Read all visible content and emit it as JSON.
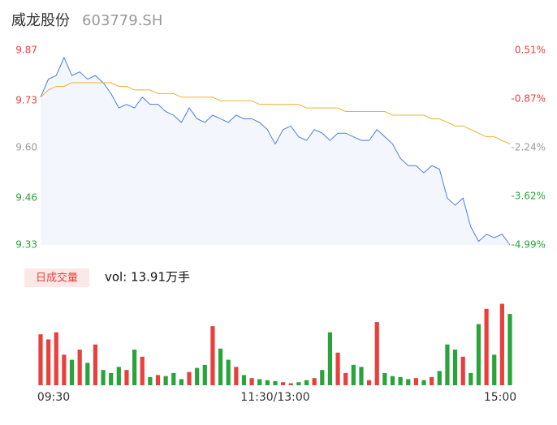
{
  "chart_data": [
    {
      "type": "line",
      "title": "威龙股份",
      "subtitle": "603779.SH",
      "x": [
        0,
        4,
        8,
        12,
        16,
        20,
        24,
        28,
        32,
        36,
        40,
        44,
        48,
        52,
        56,
        60,
        64,
        68,
        72,
        76,
        80,
        84,
        88,
        92,
        96,
        100,
        104,
        108,
        112,
        116,
        120,
        124,
        128,
        132,
        136,
        140,
        144,
        148,
        152,
        156,
        160,
        164,
        168,
        172,
        176,
        180,
        184,
        188,
        192,
        196,
        200,
        204,
        208,
        212,
        216,
        220,
        224,
        228,
        232,
        236,
        240
      ],
      "series": [
        {
          "color": "#4a7fe0",
          "values": [
            9.74,
            9.79,
            9.8,
            9.85,
            9.8,
            9.81,
            9.79,
            9.8,
            9.78,
            9.75,
            9.71,
            9.72,
            9.71,
            9.74,
            9.72,
            9.72,
            9.7,
            9.69,
            9.67,
            9.71,
            9.68,
            9.67,
            9.69,
            9.68,
            9.67,
            9.69,
            9.68,
            9.68,
            9.67,
            9.65,
            9.61,
            9.65,
            9.66,
            9.63,
            9.62,
            9.65,
            9.64,
            9.62,
            9.64,
            9.64,
            9.63,
            9.62,
            9.62,
            9.65,
            9.63,
            9.61,
            9.57,
            9.55,
            9.55,
            9.53,
            9.55,
            9.54,
            9.46,
            9.44,
            9.46,
            9.38,
            9.34,
            9.36,
            9.35,
            9.36,
            9.33
          ]
        },
        {
          "color": "#f0b030",
          "values": [
            9.74,
            9.76,
            9.77,
            9.77,
            9.78,
            9.78,
            9.78,
            9.78,
            9.78,
            9.78,
            9.77,
            9.77,
            9.76,
            9.76,
            9.76,
            9.75,
            9.75,
            9.75,
            9.74,
            9.74,
            9.74,
            9.74,
            9.74,
            9.73,
            9.73,
            9.73,
            9.73,
            9.73,
            9.72,
            9.72,
            9.72,
            9.72,
            9.72,
            9.72,
            9.71,
            9.71,
            9.71,
            9.71,
            9.71,
            9.7,
            9.7,
            9.7,
            9.7,
            9.7,
            9.7,
            9.69,
            9.69,
            9.69,
            9.69,
            9.69,
            9.68,
            9.68,
            9.67,
            9.66,
            9.66,
            9.65,
            9.64,
            9.63,
            9.63,
            9.62,
            9.61
          ]
        }
      ],
      "area_color": "#f3f6fc",
      "xlim": [
        0,
        240
      ],
      "xticks": [
        {
          "value": 0,
          "label": "09:30"
        },
        {
          "value": 120,
          "label": "11:30/13:00"
        },
        {
          "value": 240,
          "label": "15:00"
        }
      ],
      "ylim": [
        9.33,
        9.87
      ],
      "yticks": [
        9.87,
        9.73,
        {
          "value": 9.6,
          "label": "9.60"
        },
        9.46,
        9.33
      ],
      "ytick_colors": [
        "#e8413d",
        "#e8413d",
        "#999999",
        "#2aa33b",
        "#2aa33b"
      ],
      "y2lim": [
        -4.99,
        0.51
      ],
      "y2ticks": [
        {
          "value": 0.51,
          "label": "0.51%"
        },
        {
          "value": -0.87,
          "label": "-0.87%"
        },
        {
          "value": -2.24,
          "label": "-2.24%"
        },
        {
          "value": -3.62,
          "label": "-3.62%"
        },
        {
          "value": -4.99,
          "label": "-4.99%"
        }
      ]
    },
    {
      "type": "bar",
      "title": "日成交量",
      "annotation": "vol: 13.91万手",
      "up_color": "#e8413d",
      "down_color": "#2aa33b",
      "values": [
        5000,
        4500,
        5200,
        3000,
        2500,
        3500,
        2200,
        4000,
        1500,
        1200,
        1800,
        1500,
        3500,
        2800,
        800,
        1000,
        900,
        1200,
        600,
        1300,
        1700,
        2000,
        5800,
        3600,
        2500,
        1800,
        1000,
        700,
        600,
        500,
        400,
        300,
        200,
        300,
        500,
        700,
        1500,
        5200,
        3200,
        1200,
        2000,
        1800,
        500,
        6200,
        1200,
        900,
        800,
        600,
        700,
        500,
        800,
        1400,
        4000,
        3500,
        2800,
        1200,
        6000,
        7500,
        3000,
        8000,
        7000
      ],
      "ylim": [
        0,
        8200
      ]
    }
  ]
}
